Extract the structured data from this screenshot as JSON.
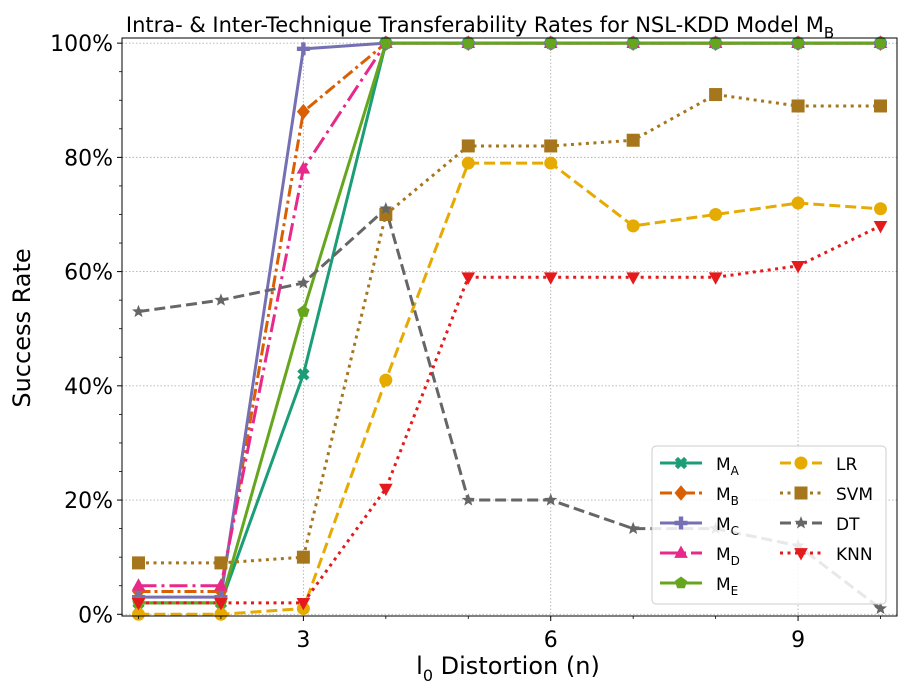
{
  "chart_data": {
    "type": "line",
    "title": "Intra- & Inter-Technique Transferability Rates for NSL-KDD Model M",
    "title_sub": "B",
    "xlabel_main": "l",
    "xlabel_sub": "0",
    "xlabel_rest": " Distortion (n)",
    "ylabel": "Success Rate",
    "x": [
      1,
      2,
      3,
      4,
      5,
      6,
      7,
      8,
      9,
      10
    ],
    "xlim": [
      0.8,
      10.2
    ],
    "ylim": [
      -0.3,
      100.9
    ],
    "xticks": [
      3,
      6,
      9
    ],
    "xtick_labels": [
      "3",
      "6",
      "9"
    ],
    "yticks": [
      0,
      20,
      40,
      60,
      80,
      100
    ],
    "ytick_labels": [
      "0%",
      "20%",
      "40%",
      "60%",
      "80%",
      "100%"
    ],
    "grid": true,
    "legend_position": "lower-right",
    "series": [
      {
        "name": "M",
        "sub": "A",
        "color": "#1b9e77",
        "dash": "solid",
        "marker": "x",
        "values": [
          2,
          2,
          42,
          100,
          100,
          100,
          100,
          100,
          100,
          100
        ]
      },
      {
        "name": "M",
        "sub": "B",
        "color": "#d95f02",
        "dash": "dashdot",
        "marker": "diamond",
        "values": [
          4,
          4,
          88,
          100,
          100,
          100,
          100,
          100,
          100,
          100
        ]
      },
      {
        "name": "M",
        "sub": "C",
        "color": "#7570b3",
        "dash": "solid",
        "marker": "plus",
        "values": [
          3,
          3,
          99,
          100,
          100,
          100,
          100,
          100,
          100,
          100
        ]
      },
      {
        "name": "M",
        "sub": "D",
        "color": "#e7298a",
        "dash": "longdashdot",
        "marker": "triangle-up",
        "values": [
          5,
          5,
          78,
          100,
          100,
          100,
          100,
          100,
          100,
          100
        ]
      },
      {
        "name": "M",
        "sub": "E",
        "color": "#66a61e",
        "dash": "solid",
        "marker": "pentagon",
        "values": [
          2,
          2,
          53,
          100,
          100,
          100,
          100,
          100,
          100,
          100
        ]
      },
      {
        "name": "LR",
        "sub": "",
        "color": "#e6ab02",
        "dash": "dashed",
        "marker": "circle",
        "values": [
          0,
          0,
          1,
          41,
          79,
          79,
          68,
          70,
          72,
          71
        ]
      },
      {
        "name": "SVM",
        "sub": "",
        "color": "#a6761d",
        "dash": "dotted",
        "marker": "square",
        "values": [
          9,
          9,
          10,
          70,
          82,
          82,
          83,
          91,
          89,
          89
        ]
      },
      {
        "name": "DT",
        "sub": "",
        "color": "#666666",
        "dash": "dashed",
        "marker": "star",
        "values": [
          53,
          55,
          58,
          71,
          20,
          20,
          15,
          15,
          12,
          1
        ]
      },
      {
        "name": "KNN",
        "sub": "",
        "color": "#e41a1c",
        "dash": "dotted",
        "marker": "triangle-down",
        "values": [
          2,
          2,
          2,
          22,
          59,
          59,
          59,
          59,
          61,
          68
        ]
      }
    ]
  }
}
